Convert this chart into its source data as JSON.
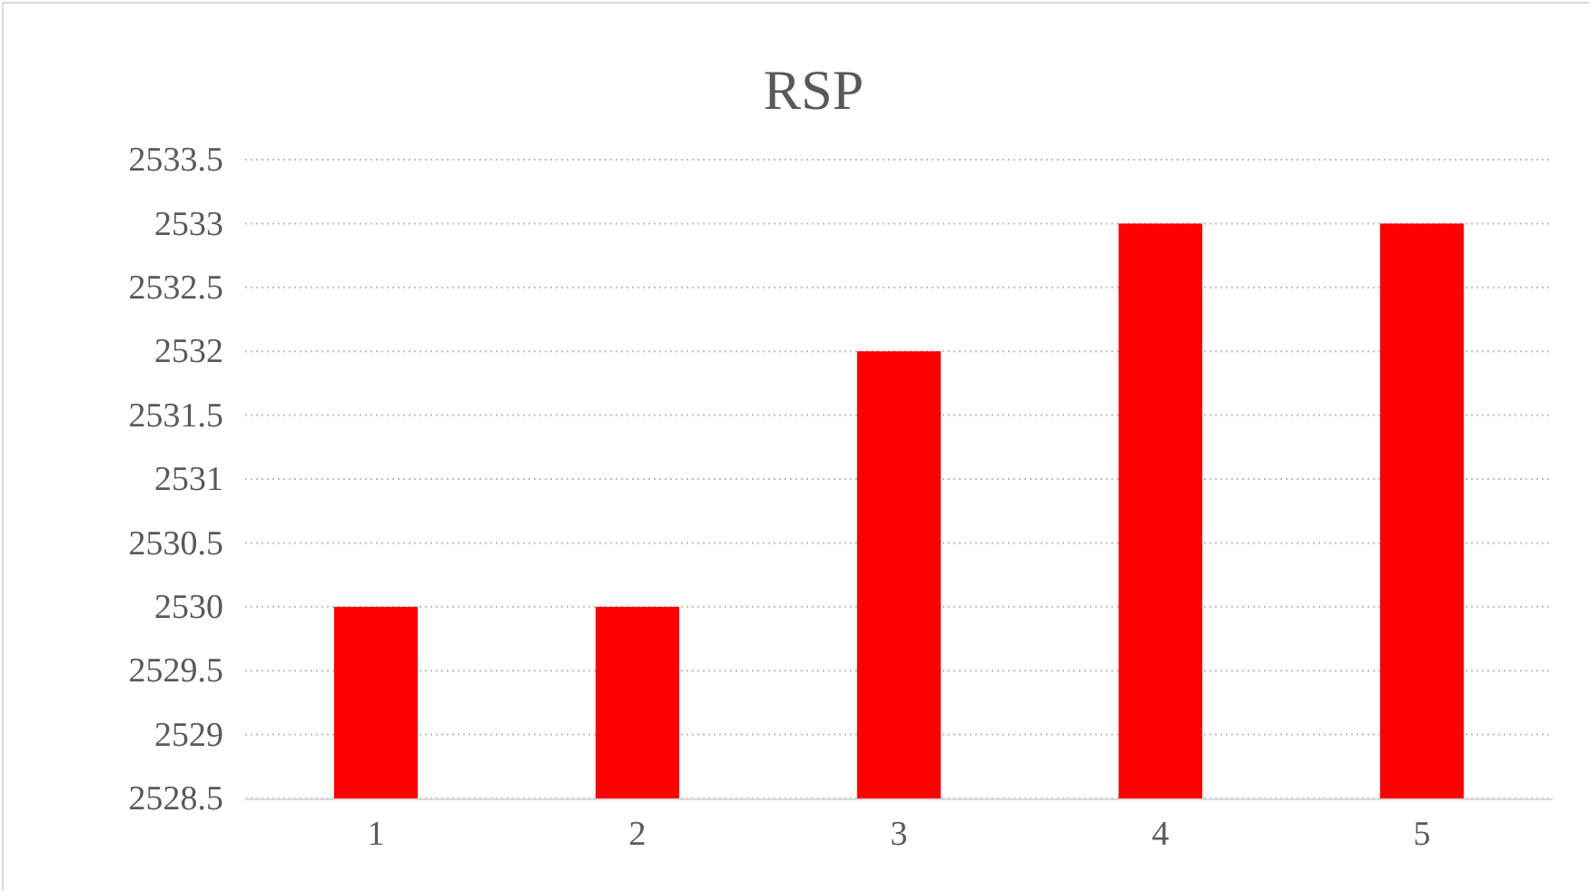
{
  "chart_data": {
    "type": "bar",
    "title": "RSP",
    "categories": [
      "1",
      "2",
      "3",
      "4",
      "5"
    ],
    "values": [
      2530,
      2530,
      2532,
      2533,
      2533
    ],
    "color": "#ff0000",
    "ylim": [
      2528.5,
      2533.5
    ],
    "yticks": [
      2528.5,
      2529,
      2529.5,
      2530,
      2530.5,
      2531,
      2531.5,
      2532,
      2532.5,
      2533,
      2533.5
    ],
    "grid": "y"
  }
}
